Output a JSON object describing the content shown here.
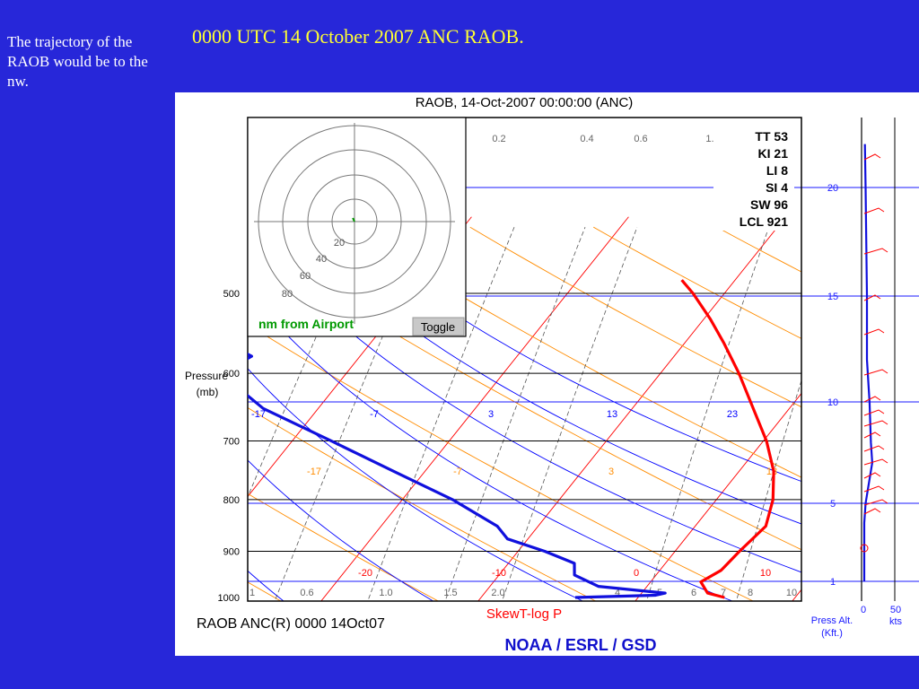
{
  "slide": {
    "title": "0000 UTC 14 October 2007 ANC RAOB.",
    "note": "The trajectory of the RAOB would be to the nw."
  },
  "chart_data": {
    "type": "line",
    "title": "RAOB, 14-Oct-2007 00:00:00 (ANC)",
    "subtitle_station": "RAOB ANC(R) 0000 14Oct07",
    "subtitle_diagram": "SkewT-log P",
    "credit": "NOAA / ESRL / GSD",
    "ylabel": "Pressure\n(mb)",
    "ylabel_lines": [
      "Pressure",
      "(mb)"
    ],
    "y_log": true,
    "ylim": [
      470,
      1000
    ],
    "pressure_levels": [
      500,
      600,
      700,
      800,
      900,
      1000
    ],
    "isotherm_labels": [
      "-17",
      "-7",
      "3",
      "13",
      "23"
    ],
    "isotherm_labels_lower": [
      "-17",
      "-7",
      "3",
      "13"
    ],
    "isotherm_labels_bottom": [
      "-20",
      "-10",
      "0",
      "10"
    ],
    "mixing_ratio_labels_top": [
      "0.2",
      "0.4",
      "0.6",
      "1.0"
    ],
    "mixing_ratio_labels_bottom": [
      "1",
      "0.6",
      "1.0",
      "1.5",
      "2.0",
      "4",
      "5",
      "6",
      "7",
      "8",
      "10"
    ],
    "indices": [
      {
        "label": "TT 53"
      },
      {
        "label": "KI 21"
      },
      {
        "label": "LI 8"
      },
      {
        "label": "SI 4"
      },
      {
        "label": "SW 96"
      },
      {
        "label": "LCL 921"
      }
    ],
    "series": [
      {
        "points": [
          [
            1000,
            5.5
          ],
          [
            990,
            4.2
          ],
          [
            965,
            3.2
          ],
          [
            940,
            3.9
          ],
          [
            900,
            4.1
          ],
          [
            850,
            4.5
          ],
          [
            800,
            3.6
          ],
          [
            750,
            2.2
          ],
          [
            700,
            0.2
          ],
          [
            650,
            -2.3
          ],
          [
            600,
            -5.0
          ],
          [
            560,
            -7.5
          ],
          [
            530,
            -9.6
          ],
          [
            500,
            -12.0
          ],
          [
            485,
            -13.4
          ]
        ]
      },
      {
        "points": [
          [
            1000,
            -4.0
          ],
          [
            995,
            1.0
          ],
          [
            990,
            1.5
          ],
          [
            975,
            -3.1
          ],
          [
            950,
            -5.2
          ],
          [
            925,
            -5.8
          ],
          [
            900,
            -8.3
          ],
          [
            875,
            -11.3
          ],
          [
            850,
            -12.6
          ],
          [
            800,
            -16.8
          ],
          [
            750,
            -22.0
          ],
          [
            700,
            -27.5
          ],
          [
            650,
            -33.5
          ],
          [
            600,
            -38.0
          ],
          [
            577,
            -36.9
          ],
          [
            540,
            -42.0
          ],
          [
            520,
            -49.0
          ],
          [
            502,
            -51.0
          ],
          [
            495,
            -42.0
          ],
          [
            490,
            -53.0
          ]
        ]
      }
    ],
    "hodograph": {
      "range_labels": [
        "20",
        "40",
        "60",
        "80"
      ],
      "caption": "nm from Airport",
      "toggle_label": "Toggle",
      "trajectory": [
        [
          0,
          0
        ],
        [
          -1.2,
          2.5
        ]
      ]
    },
    "altitude_axis": {
      "ticks_kft": [
        "20",
        "15",
        "10",
        "5",
        "1"
      ],
      "wind_ticks_kts": [
        "0",
        "50"
      ],
      "xlabel": "Press Alt.\n(Kft.)",
      "xlabel_lines": [
        "Press Alt.",
        "(Kft.)"
      ],
      "unit": "kts"
    },
    "wind_speed_profile": [
      [
        1.0,
        0
      ],
      [
        3,
        0
      ],
      [
        4,
        0
      ],
      [
        5,
        2
      ],
      [
        7,
        12
      ],
      [
        8,
        10
      ],
      [
        10,
        8
      ],
      [
        12,
        4
      ],
      [
        15,
        4
      ],
      [
        20,
        2
      ],
      [
        22,
        1
      ]
    ]
  },
  "colors": {
    "background": "#2727d9",
    "title": "#ffff33",
    "temperature": "#ff0000",
    "dewpoint": "#1010dd",
    "isotherm": "#ff0000",
    "dry_adiabat": "#ff8c00",
    "moist_adiabat": "#0000ff",
    "mixing_ratio": "#555555",
    "hodograph_caption": "#009900"
  }
}
